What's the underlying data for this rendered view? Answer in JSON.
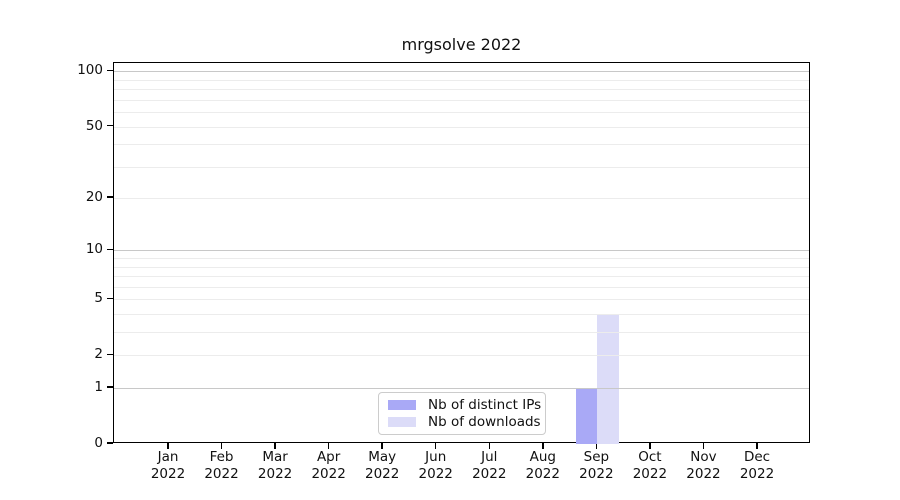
{
  "colors": {
    "background": "#ffffff",
    "spine": "#000000",
    "grid_major": "#c8c8c8",
    "grid_minor": "#ececec",
    "text": "#111111",
    "distinct_ips_bar": "#a9a9f6",
    "downloads_bar": "#dcdcf8"
  },
  "chart_data": {
    "type": "bar",
    "title": "mrgsolve 2022",
    "xlabel": "",
    "ylabel": "",
    "categories": [
      {
        "month": "Jan",
        "year": "2022"
      },
      {
        "month": "Feb",
        "year": "2022"
      },
      {
        "month": "Mar",
        "year": "2022"
      },
      {
        "month": "Apr",
        "year": "2022"
      },
      {
        "month": "May",
        "year": "2022"
      },
      {
        "month": "Jun",
        "year": "2022"
      },
      {
        "month": "Jul",
        "year": "2022"
      },
      {
        "month": "Aug",
        "year": "2022"
      },
      {
        "month": "Sep",
        "year": "2022"
      },
      {
        "month": "Oct",
        "year": "2022"
      },
      {
        "month": "Nov",
        "year": "2022"
      },
      {
        "month": "Dec",
        "year": "2022"
      }
    ],
    "series": [
      {
        "name": "Nb of distinct IPs",
        "color": "#a9a9f6",
        "values": [
          0,
          0,
          0,
          0,
          0,
          0,
          0,
          0,
          1,
          0,
          0,
          0
        ]
      },
      {
        "name": "Nb of downloads",
        "color": "#dcdcf8",
        "values": [
          0,
          0,
          0,
          0,
          0,
          0,
          0,
          0,
          4,
          0,
          0,
          0
        ]
      }
    ],
    "yscale": "log1p",
    "ylim": [
      0,
      111
    ],
    "yticks": [
      0,
      1,
      2,
      5,
      10,
      20,
      50,
      100
    ],
    "major_gridlines": [
      1,
      10,
      100
    ],
    "minor_gridlines": [
      2,
      3,
      4,
      5,
      6,
      7,
      8,
      9,
      20,
      30,
      40,
      50,
      60,
      70,
      80,
      90
    ],
    "grid": "horizontal",
    "legend_position": "inside-bottom-center"
  }
}
